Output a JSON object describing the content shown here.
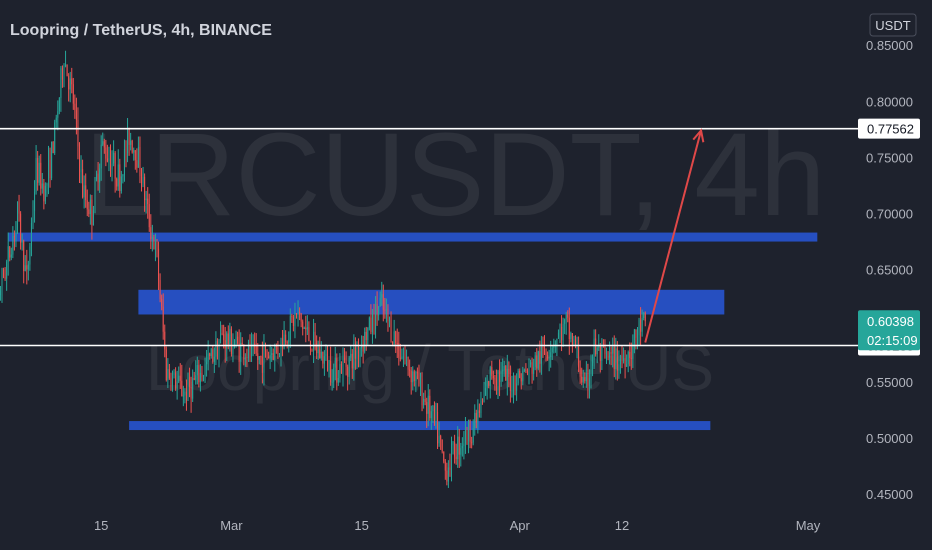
{
  "header": {
    "title": "Loopring / TetherUS, 4h, BINANCE",
    "watermark_main": "LRCUSDT, 4h",
    "watermark_sub": "Loopring / TetherUS",
    "currency_badge": "USDT"
  },
  "colors": {
    "background": "#1e222d",
    "up_candle": "#26a69a",
    "down_candle": "#ef5350",
    "zone": "#2962ff",
    "arrow": "#e04848",
    "level_line": "#ffffff"
  },
  "chart_data": {
    "type": "candlestick",
    "symbol": "LRCUSDT",
    "timeframe": "4h",
    "exchange": "BINANCE",
    "ylim": [
      0.45,
      0.85
    ],
    "y_ticks": [
      "0.85000",
      "0.80000",
      "0.75000",
      "0.70000",
      "0.65000",
      "0.55000",
      "0.50000",
      "0.45000"
    ],
    "x_ticks": [
      "15",
      "Mar",
      "15",
      "Apr",
      "12",
      "May"
    ],
    "x_tick_days": [
      14,
      28,
      42,
      59,
      70,
      90
    ],
    "last_day": 72.5,
    "current_price": "0.60398",
    "current_price_value": 0.60398,
    "countdown": "02:15:09",
    "horizontal_levels": [
      {
        "label": "0.77562",
        "value": 0.77562
      },
      {
        "label": "0.58235",
        "value": 0.58235
      }
    ],
    "zones": [
      {
        "day_start": 4,
        "day_end": 91,
        "low": 0.675,
        "high": 0.683
      },
      {
        "day_start": 18,
        "day_end": 81,
        "low": 0.61,
        "high": 0.632
      },
      {
        "day_start": 17,
        "day_end": 79.5,
        "low": 0.507,
        "high": 0.515
      }
    ],
    "arrow": {
      "from_day": 72.5,
      "from_price": 0.585,
      "to_day": 78.5,
      "to_price": 0.774
    },
    "path_points": [
      [
        0,
        0.55
      ],
      [
        1,
        0.58
      ],
      [
        2,
        0.75
      ],
      [
        3,
        0.63
      ],
      [
        4,
        0.66
      ],
      [
        5,
        0.7
      ],
      [
        6,
        0.64
      ],
      [
        7,
        0.74
      ],
      [
        8,
        0.72
      ],
      [
        9,
        0.77
      ],
      [
        10,
        0.84
      ],
      [
        11,
        0.8
      ],
      [
        12,
        0.72
      ],
      [
        13,
        0.7
      ],
      [
        14,
        0.76
      ],
      [
        15,
        0.75
      ],
      [
        16,
        0.73
      ],
      [
        17,
        0.77
      ],
      [
        18,
        0.75
      ],
      [
        19,
        0.7
      ],
      [
        20,
        0.66
      ],
      [
        21,
        0.56
      ],
      [
        23,
        0.54
      ],
      [
        25,
        0.56
      ],
      [
        27,
        0.59
      ],
      [
        29,
        0.58
      ],
      [
        31,
        0.57
      ],
      [
        33,
        0.58
      ],
      [
        35,
        0.61
      ],
      [
        37,
        0.58
      ],
      [
        39,
        0.56
      ],
      [
        41,
        0.57
      ],
      [
        43,
        0.6
      ],
      [
        44,
        0.62
      ],
      [
        45,
        0.6
      ],
      [
        46,
        0.58
      ],
      [
        48,
        0.55
      ],
      [
        50,
        0.51
      ],
      [
        51,
        0.47
      ],
      [
        52,
        0.49
      ],
      [
        54,
        0.51
      ],
      [
        55,
        0.53
      ],
      [
        56,
        0.56
      ],
      [
        58,
        0.55
      ],
      [
        60,
        0.56
      ],
      [
        62,
        0.58
      ],
      [
        64,
        0.6
      ],
      [
        65,
        0.58
      ],
      [
        66,
        0.54
      ],
      [
        67,
        0.58
      ],
      [
        68,
        0.57
      ],
      [
        70,
        0.57
      ],
      [
        71,
        0.58
      ],
      [
        72,
        0.6
      ],
      [
        72.5,
        0.604
      ]
    ]
  }
}
